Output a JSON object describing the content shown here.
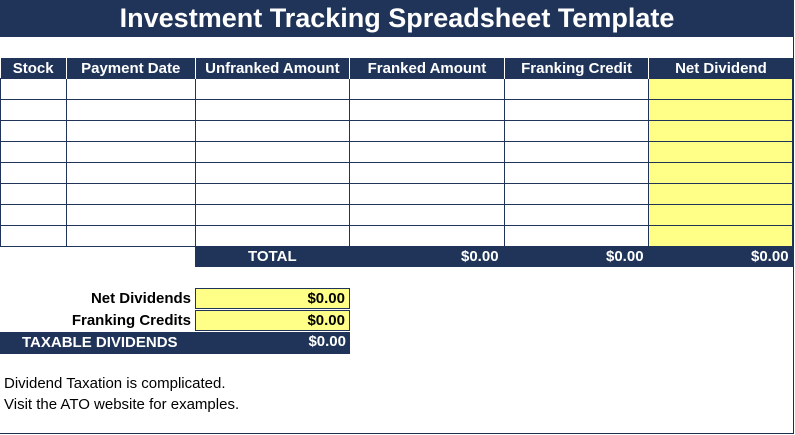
{
  "title": "Investment Tracking Spreadsheet Template",
  "columns": [
    "Stock",
    "Payment Date",
    "Unfranked Amount",
    "Franked Amount",
    "Franking Credit",
    "Net Dividend"
  ],
  "totals": {
    "label": "TOTAL",
    "franked": "$0.00",
    "franking_credit": "$0.00",
    "net_dividend": "$0.00"
  },
  "summary": {
    "net_dividends_label": "Net Dividends",
    "net_dividends_value": "$0.00",
    "franking_credits_label": "Franking Credits",
    "franking_credits_value": "$0.00",
    "taxable_label": "TAXABLE DIVIDENDS",
    "taxable_value": "$0.00"
  },
  "notes": {
    "line1": "Dividend Taxation is complicated.",
    "line2": "Visit the ATO website for examples."
  },
  "colors": {
    "header_bg": "#1f3458",
    "highlight": "#ffff88"
  }
}
